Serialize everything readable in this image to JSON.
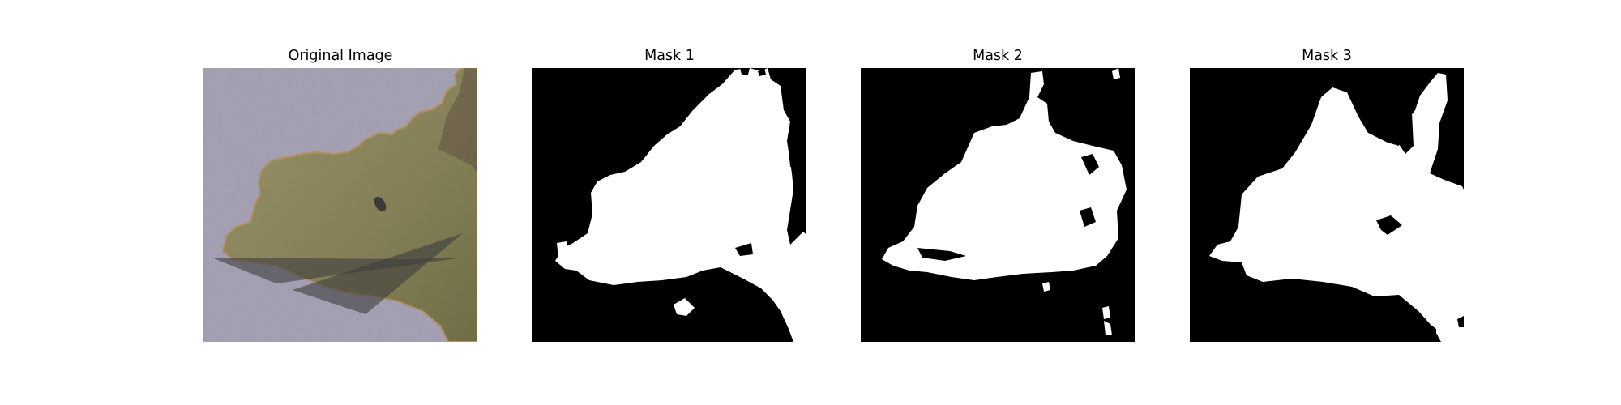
{
  "panels": [
    {
      "title": "Original Image"
    },
    {
      "title": "Mask 1"
    },
    {
      "title": "Mask 2"
    },
    {
      "title": "Mask 3"
    }
  ],
  "colors": {
    "background_gray": "#9b97ab",
    "leaf_green": "#857f54",
    "leaf_dark": "#6e6a42",
    "shadow": "#3e3e3e",
    "mask_fg": "#ffffff",
    "mask_bg": "#000000"
  }
}
